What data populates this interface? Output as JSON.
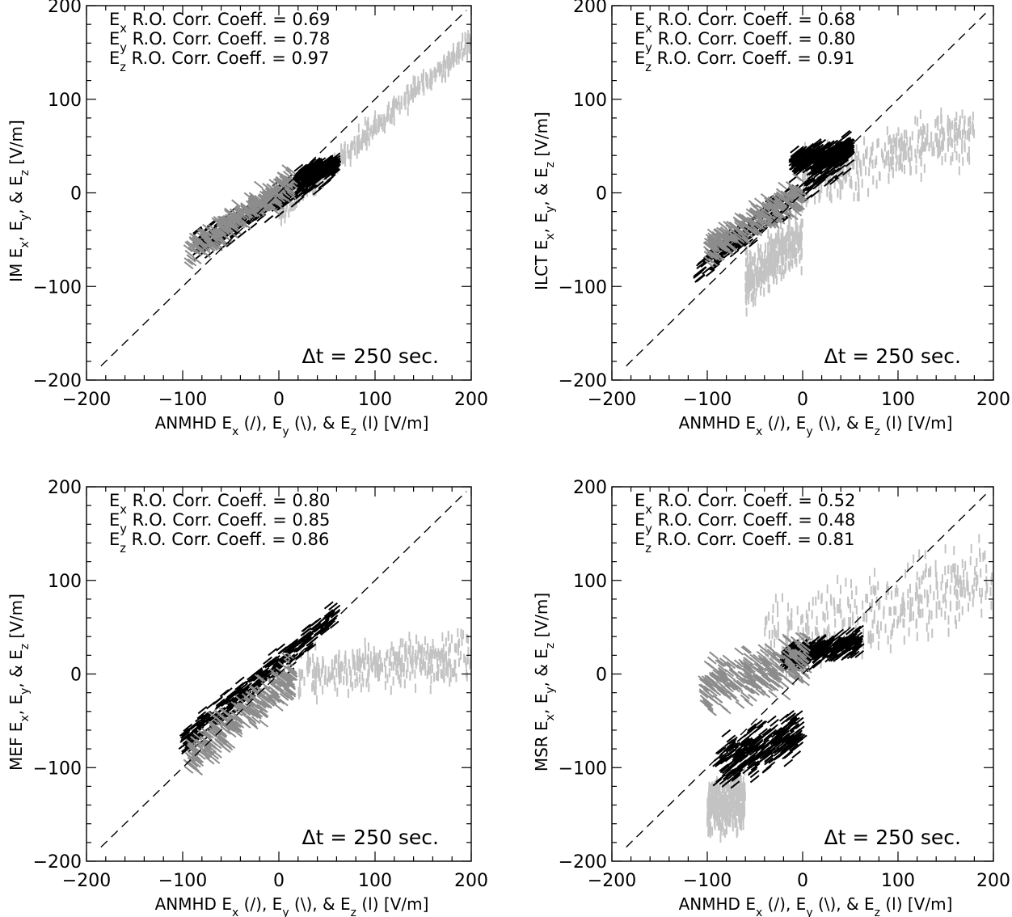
{
  "figure": {
    "comparison_label": "ANMHD",
    "xlabel_suffix": "[V/m]",
    "ylabel_suffix": "[V/m]",
    "component_markers": [
      "(/)",
      "(\\)",
      "(l)"
    ],
    "dt_label": "Δt =",
    "dt_value": "250 sec.",
    "colors": {
      "ex": "#000000",
      "ey": "#8c8c8c",
      "ez": "#c3c3c3",
      "axes": "#000000",
      "background": "#ffffff"
    }
  },
  "chart_data": [
    {
      "type": "scatter",
      "method": "IM",
      "xlabel": "ANMHD  Ex (/), Ey (\\), & Ez (l) [V/m]",
      "ylabel": "IM Ex, Ey, & Ez [V/m]",
      "xlim": [
        -200,
        200
      ],
      "ylim": [
        -200,
        200
      ],
      "xticks": [
        -200,
        -100,
        0,
        100,
        200
      ],
      "yticks": [
        -200,
        -100,
        0,
        100,
        200
      ],
      "reference_line": "y = x (dashed)",
      "annotations": [
        "Ex R.O. Corr. Coeff. = 0.69",
        "Ey R.O. Corr. Coeff. = 0.78",
        "Ez R.O. Corr. Coeff. = 0.97"
      ],
      "delta_t": "Δt = 250 sec.",
      "series": [
        {
          "name": "Ex",
          "marker": "/",
          "clusters": [
            {
              "center": [
                -15,
                -15
              ],
              "slope": 0.6,
              "half_length": 70,
              "half_width": 22
            },
            {
              "center": [
                40,
                25
              ],
              "slope": 0.3,
              "half_length": 20,
              "half_width": 12
            }
          ]
        },
        {
          "name": "Ey",
          "marker": "\\",
          "clusters": [
            {
              "center": [
                -40,
                -25
              ],
              "slope": 0.7,
              "half_length": 55,
              "half_width": 22
            }
          ]
        },
        {
          "name": "Ez",
          "marker": "|",
          "clusters": [
            {
              "center": [
                100,
                70
              ],
              "slope": 0.92,
              "half_length": 100,
              "half_width": 18
            }
          ]
        }
      ]
    },
    {
      "type": "scatter",
      "method": "ILCT",
      "xlabel": "ANMHD  Ex (/), Ey (\\), & Ez (l) [V/m]",
      "ylabel": "ILCT Ex, Ey, & Ez [V/m]",
      "xlim": [
        -200,
        200
      ],
      "ylim": [
        -200,
        200
      ],
      "xticks": [
        -200,
        -100,
        0,
        100,
        200
      ],
      "yticks": [
        -200,
        -100,
        0,
        100,
        200
      ],
      "reference_line": "y = x (dashed)",
      "annotations": [
        "Ex R.O. Corr. Coeff. = 0.68",
        "Ey R.O. Corr. Coeff. = 0.80",
        "Ez R.O. Corr. Coeff. = 0.91"
      ],
      "delta_t": "Δt = 250 sec.",
      "series": [
        {
          "name": "Ex",
          "marker": "/",
          "clusters": [
            {
              "center": [
                -30,
                -20
              ],
              "slope": 0.8,
              "half_length": 80,
              "half_width": 25
            },
            {
              "center": [
                20,
                40
              ],
              "slope": 0.2,
              "half_length": 30,
              "half_width": 18
            }
          ]
        },
        {
          "name": "Ey",
          "marker": "\\",
          "clusters": [
            {
              "center": [
                -50,
                -30
              ],
              "slope": 0.6,
              "half_length": 50,
              "half_width": 25
            }
          ]
        },
        {
          "name": "Ez",
          "marker": "|",
          "clusters": [
            {
              "center": [
                90,
                40
              ],
              "slope": 0.3,
              "half_length": 90,
              "half_width": 40
            },
            {
              "center": [
                -30,
                -70
              ],
              "slope": 0.8,
              "half_length": 30,
              "half_width": 40
            }
          ]
        }
      ]
    },
    {
      "type": "scatter",
      "method": "MEF",
      "xlabel": "ANMHD  Ex (/), Ey (\\), & Ez (l) [V/m]",
      "ylabel": "MEF Ex, Ey, & Ez [V/m]",
      "xlim": [
        -200,
        200
      ],
      "ylim": [
        -200,
        200
      ],
      "xticks": [
        -200,
        -100,
        0,
        100,
        200
      ],
      "yticks": [
        -200,
        -100,
        0,
        100,
        200
      ],
      "reference_line": "y = x (dashed)",
      "annotations": [
        "Ex R.O. Corr. Coeff. = 0.80",
        "Ey R.O. Corr. Coeff. = 0.85",
        "Ez R.O. Corr. Coeff. = 0.86"
      ],
      "delta_t": "Δt = 250 sec.",
      "series": [
        {
          "name": "Ex",
          "marker": "/",
          "clusters": [
            {
              "center": [
                -20,
                -5
              ],
              "slope": 0.85,
              "half_length": 80,
              "half_width": 22
            }
          ]
        },
        {
          "name": "Ey",
          "marker": "\\",
          "clusters": [
            {
              "center": [
                -40,
                -45
              ],
              "slope": 0.8,
              "half_length": 55,
              "half_width": 30
            }
          ]
        },
        {
          "name": "Ez",
          "marker": "|",
          "clusters": [
            {
              "center": [
                110,
                10
              ],
              "slope": 0.15,
              "half_length": 90,
              "half_width": 35
            }
          ]
        }
      ]
    },
    {
      "type": "scatter",
      "method": "MSR",
      "xlabel": "ANMHD  Ex (/), Ey (\\), & Ez (l) [V/m]",
      "ylabel": "MSR Ex, Ey, & Ez [V/m]",
      "xlim": [
        -200,
        200
      ],
      "ylim": [
        -200,
        200
      ],
      "xticks": [
        -200,
        -100,
        0,
        100,
        200
      ],
      "yticks": [
        -200,
        -100,
        0,
        100,
        200
      ],
      "reference_line": "y = x (dashed)",
      "annotations": [
        "Ex R.O. Corr. Coeff. = 0.52",
        "Ey R.O. Corr. Coeff. = 0.48",
        "Ez R.O. Corr. Coeff. = 0.81"
      ],
      "delta_t": "Δt = 250 sec.",
      "series": [
        {
          "name": "Ex",
          "marker": "/",
          "clusters": [
            {
              "center": [
                -45,
                -80
              ],
              "slope": 0.4,
              "half_length": 45,
              "half_width": 35
            },
            {
              "center": [
                20,
                25
              ],
              "slope": 0.2,
              "half_length": 40,
              "half_width": 18
            }
          ]
        },
        {
          "name": "Ey",
          "marker": "\\",
          "clusters": [
            {
              "center": [
                -50,
                0
              ],
              "slope": 0.3,
              "half_length": 55,
              "half_width": 40
            }
          ]
        },
        {
          "name": "Ez",
          "marker": "|",
          "clusters": [
            {
              "center": [
                80,
                70
              ],
              "slope": 0.3,
              "half_length": 120,
              "half_width": 60
            },
            {
              "center": [
                -80,
                -140
              ],
              "slope": 0.2,
              "half_length": 20,
              "half_width": 40
            }
          ]
        }
      ]
    }
  ]
}
